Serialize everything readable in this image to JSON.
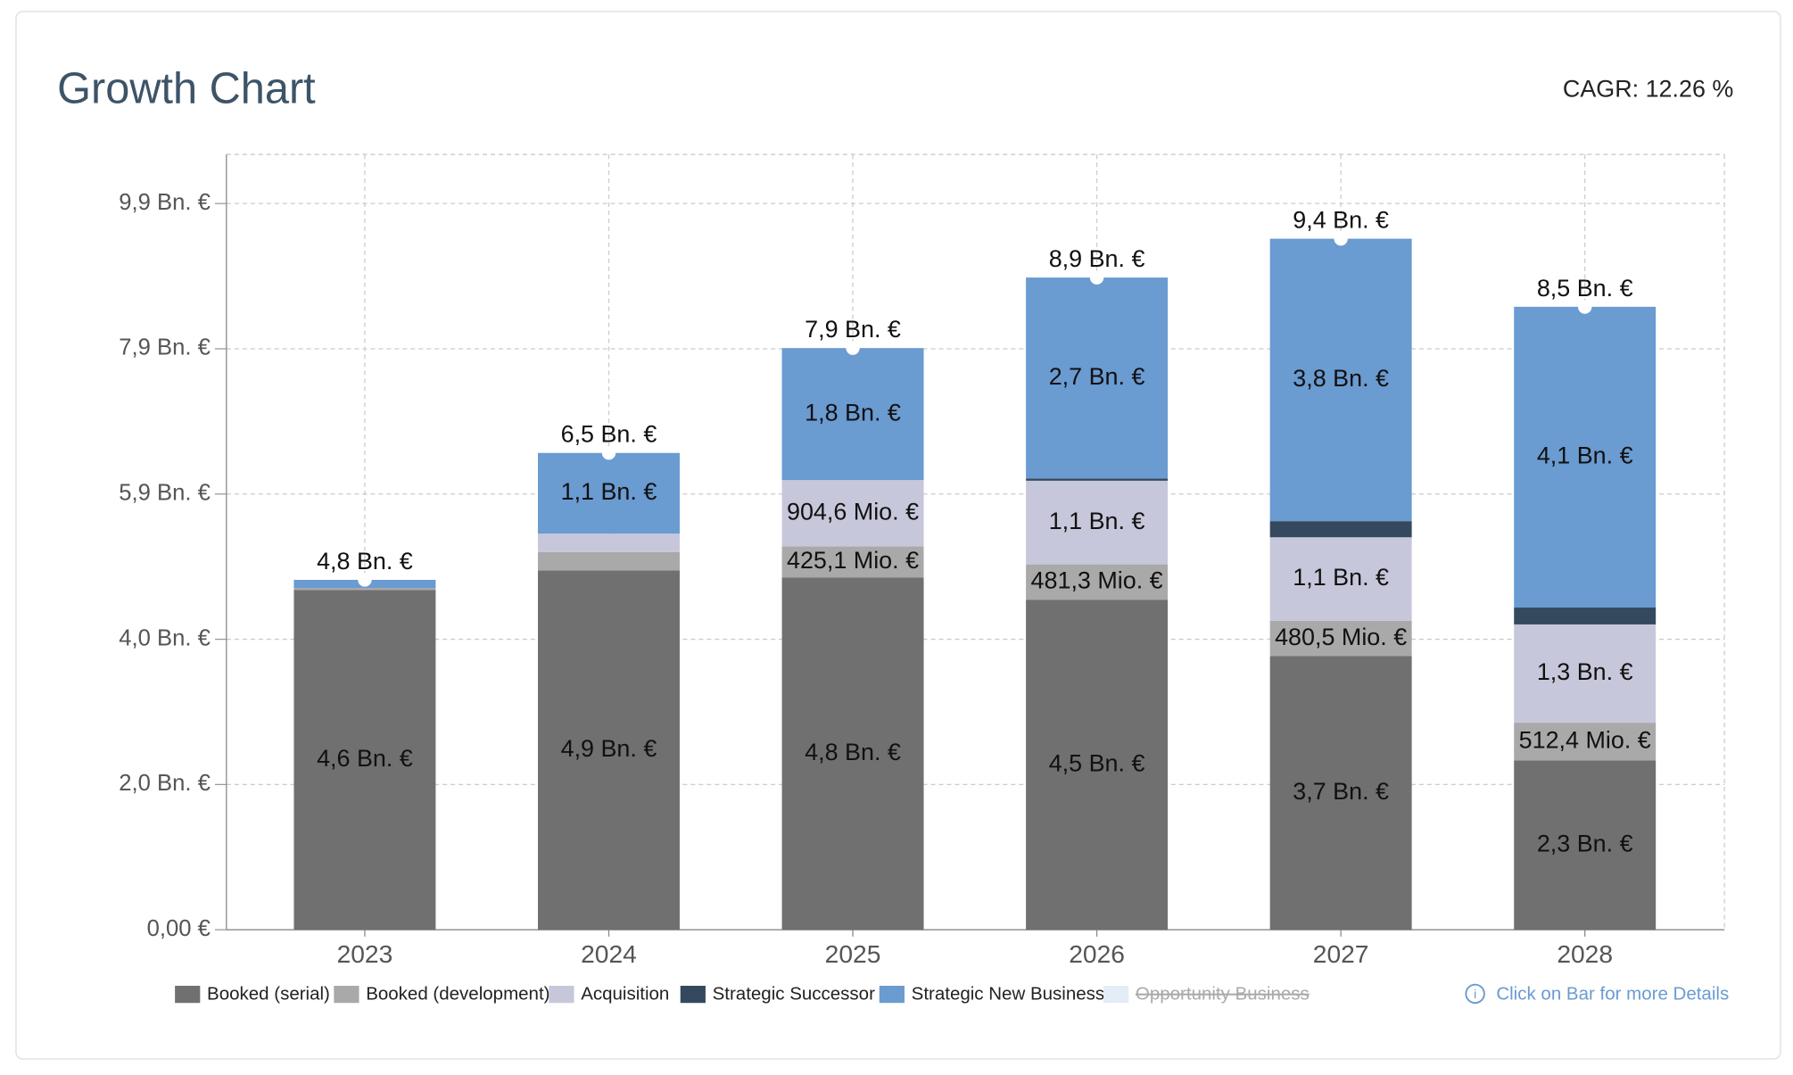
{
  "chart_data": {
    "type": "stacked-bar",
    "title": "Growth Chart",
    "subtitle": "CAGR: 12.26 %",
    "note": "Click on Bar for more Details",
    "categories": [
      "2023",
      "2024",
      "2025",
      "2026",
      "2027",
      "2028"
    ],
    "series": [
      {
        "name": "Booked (serial)",
        "color": "#707070",
        "values": [
          4.63,
          4.9,
          4.8,
          4.5,
          3.73,
          2.31
        ],
        "value_labels": [
          "4,6 Bn. €",
          "4,9 Bn. €",
          "4,8 Bn. €",
          "4,5 Bn. €",
          "3,7 Bn. €",
          "2,3 Bn. €"
        ]
      },
      {
        "name": "Booked (development)",
        "color": "#a9a9a9",
        "values": [
          0.03,
          0.25,
          0.4251,
          0.4813,
          0.4805,
          0.5124
        ],
        "value_labels": [
          null,
          null,
          "425,1 Mio. €",
          "481,3 Mio. €",
          "480,5 Mio. €",
          "512,4 Mio. €"
        ]
      },
      {
        "name": "Acquisition",
        "color": "#c7c7db",
        "values": [
          0,
          0.25,
          0.9046,
          1.14,
          1.14,
          1.34
        ],
        "value_labels": [
          null,
          null,
          "904,6 Mio. €",
          "1,1 Bn. €",
          "1,1 Bn. €",
          "1,3 Bn. €"
        ]
      },
      {
        "name": "Strategic Successor",
        "color": "#34495e",
        "values": [
          0,
          0,
          0,
          0.03,
          0.22,
          0.23
        ],
        "value_labels": [
          null,
          null,
          null,
          null,
          null,
          null
        ]
      },
      {
        "name": "Strategic New Business",
        "color": "#6a9bd1",
        "values": [
          0.11,
          1.1,
          1.8,
          2.74,
          3.85,
          4.1
        ],
        "value_labels": [
          null,
          "1,1 Bn. €",
          "1,8 Bn. €",
          "2,7 Bn. €",
          "3,8 Bn. €",
          "4,1 Bn. €"
        ]
      },
      {
        "name": "Opportunity Business",
        "color": "#e3ecf7",
        "hidden": true,
        "values": [
          null,
          null,
          null,
          null,
          null,
          null
        ],
        "value_labels": [
          null,
          null,
          null,
          null,
          null,
          null
        ]
      }
    ],
    "totals": [
      4.77,
      6.5,
      7.93,
      8.89,
      9.42,
      8.49
    ],
    "total_labels": [
      "4,8 Bn. €",
      "6,5 Bn. €",
      "7,9 Bn. €",
      "8,9 Bn. €",
      "9,4 Bn. €",
      "8,5 Bn. €"
    ],
    "ylim": [
      0,
      10.57
    ],
    "yticks": [
      {
        "value": 0,
        "label": "0,00 €"
      },
      {
        "value": 1.98,
        "label": "2,0 Bn. €"
      },
      {
        "value": 3.96,
        "label": "4,0 Bn. €"
      },
      {
        "value": 5.94,
        "label": "5,9 Bn. €"
      },
      {
        "value": 7.92,
        "label": "7,9 Bn. €"
      },
      {
        "value": 9.9,
        "label": "9,9 Bn. €"
      }
    ],
    "grid": true
  }
}
